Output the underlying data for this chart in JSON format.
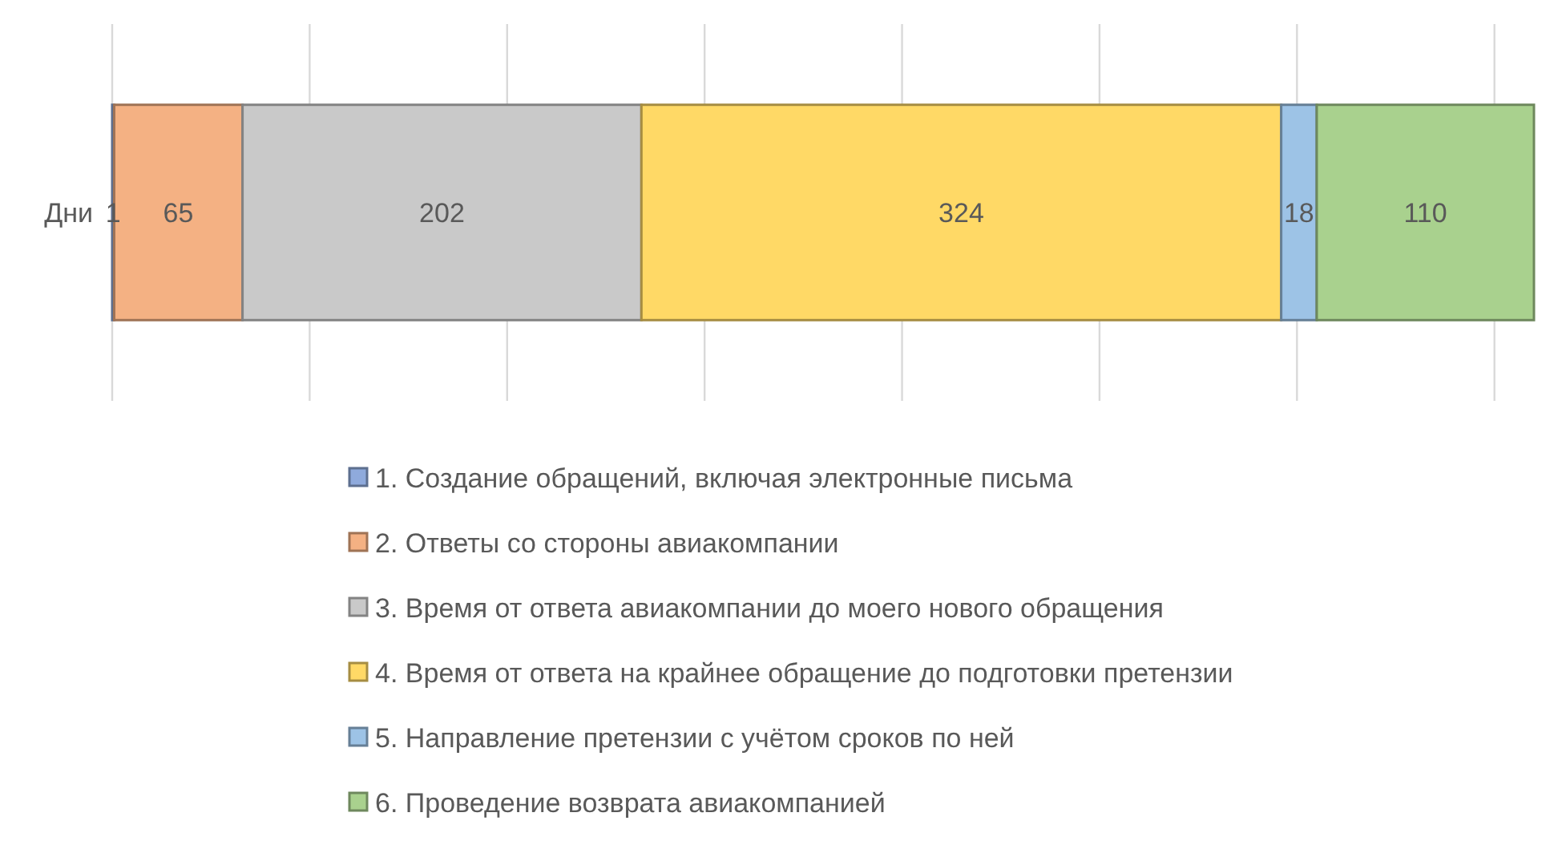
{
  "chart_data": {
    "type": "bar",
    "orientation": "horizontal",
    "stacked": true,
    "categories": [
      "Дни"
    ],
    "series": [
      {
        "name": "1. Создание обращений, включая электронные письма",
        "color": "#8faadc",
        "values": [
          1
        ]
      },
      {
        "name": "2. Ответы со стороны авиакомпании",
        "color": "#f4b183",
        "values": [
          65
        ]
      },
      {
        "name": "3. Время от ответа авиакомпании до моего нового обращения",
        "color": "#c9c9c9",
        "values": [
          202
        ]
      },
      {
        "name": "4. Время от ответа на крайнее обращение до подготовки претензии",
        "color": "#ffd966",
        "values": [
          324
        ]
      },
      {
        "name": "5. Направление претензии с учётом сроков по ней",
        "color": "#9dc3e6",
        "values": [
          18
        ]
      },
      {
        "name": "6. Проведение возврата авиакомпанией",
        "color": "#a9d18e",
        "values": [
          110
        ]
      }
    ],
    "xlim": [
      0,
      720
    ],
    "xticks": [
      {
        "value": 0,
        "label": null
      },
      {
        "value": 100,
        "label": null
      },
      {
        "value": 200,
        "label": null
      },
      {
        "value": 300,
        "label": null
      },
      {
        "value": 400,
        "label": null
      },
      {
        "value": 500,
        "label": null
      },
      {
        "value": 600,
        "label": null
      },
      {
        "value": 700,
        "label": null
      }
    ],
    "tick_labels": "y",
    "grid": "x",
    "data_labels": true,
    "legend": "bottom"
  }
}
